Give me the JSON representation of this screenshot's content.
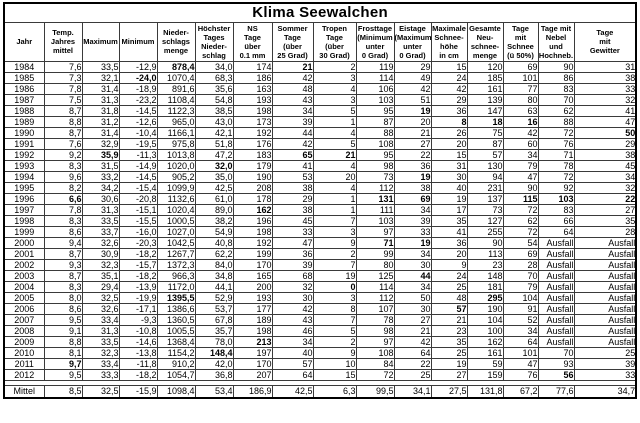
{
  "title": "Klima Seewalchen",
  "table": {
    "columns": [
      {
        "label": "Jahr"
      },
      {
        "label": "Temp.\nJahres\nmittel"
      },
      {
        "label": "Maximum"
      },
      {
        "label": "Minimum"
      },
      {
        "label": "Nieder-\nschlags\nmenge"
      },
      {
        "label": "Höchster\nTages\nNieder-\nschlag"
      },
      {
        "label": "NS\nTage\nüber\n0.1 mm"
      },
      {
        "label": "Sommer\nTage\n(über\n25 Grad)"
      },
      {
        "label": "Tropen\nTage\n(über\n30 Grad)"
      },
      {
        "label": "Frosttage\n(Minimum\nunter\n0 Grad)"
      },
      {
        "label": "Eistage\n(Maximum\nunter\n0 Grad)"
      },
      {
        "label": "Maximale\nSchnee-\nhöhe\nin cm"
      },
      {
        "label": "Gesamte\nNeu-\nschnee-\nmenge"
      },
      {
        "label": "Tage\nmit\nSchnee\n(ü 50%)"
      },
      {
        "label": "Tage mit\nNebel\nund\nHochneb."
      },
      {
        "label": "Tage\nmit\nGewitter"
      }
    ],
    "rows": [
      {
        "cells": [
          "1984",
          "7,6",
          "33,5",
          "-12,9",
          "878,4",
          "34,0",
          "174",
          "21",
          "2",
          "119",
          "29",
          "15",
          "120",
          "69",
          "90",
          "31"
        ],
        "bold": [
          4,
          7
        ]
      },
      {
        "cells": [
          "1985",
          "7,3",
          "32,1",
          "-24,0",
          "1070,4",
          "68,3",
          "186",
          "42",
          "3",
          "114",
          "49",
          "24",
          "185",
          "101",
          "86",
          "38"
        ],
        "bold": [
          3
        ]
      },
      {
        "cells": [
          "1986",
          "7,8",
          "31,4",
          "-18,9",
          "891,6",
          "35,6",
          "163",
          "48",
          "4",
          "106",
          "42",
          "42",
          "161",
          "77",
          "83",
          "33"
        ],
        "bold": []
      },
      {
        "cells": [
          "1987",
          "7,5",
          "31,3",
          "-23,2",
          "1108,4",
          "54,8",
          "193",
          "43",
          "3",
          "103",
          "51",
          "29",
          "139",
          "80",
          "70",
          "32"
        ],
        "bold": []
      },
      {
        "cells": [
          "1988",
          "8,7",
          "31,8",
          "-14,5",
          "1122,3",
          "38,5",
          "198",
          "34",
          "5",
          "95",
          "19",
          "36",
          "147",
          "63",
          "62",
          "41"
        ],
        "bold": [
          10
        ]
      },
      {
        "cells": [
          "1989",
          "8,8",
          "31,2",
          "-12,6",
          "965,0",
          "43,0",
          "173",
          "39",
          "1",
          "87",
          "20",
          "8",
          "18",
          "16",
          "88",
          "47"
        ],
        "bold": [
          11,
          12,
          13
        ]
      },
      {
        "cells": [
          "1990",
          "8,7",
          "31,4",
          "-10,4",
          "1166,1",
          "42,1",
          "192",
          "44",
          "4",
          "88",
          "21",
          "26",
          "75",
          "42",
          "72",
          "50"
        ],
        "bold": [
          15
        ]
      },
      {
        "cells": [
          "1991",
          "7,6",
          "32,9",
          "-19,5",
          "975,8",
          "51,8",
          "176",
          "42",
          "5",
          "108",
          "27",
          "20",
          "87",
          "60",
          "76",
          "29"
        ],
        "bold": []
      },
      {
        "cells": [
          "1992",
          "9,2",
          "35,9",
          "-11,3",
          "1013,8",
          "47,2",
          "183",
          "65",
          "21",
          "95",
          "22",
          "15",
          "57",
          "34",
          "71",
          "38"
        ],
        "bold": [
          2,
          7,
          8
        ]
      },
      {
        "cells": [
          "1993",
          "8,3",
          "31,5",
          "-14,9",
          "1020,0",
          "32,0",
          "179",
          "41",
          "4",
          "98",
          "36",
          "31",
          "130",
          "79",
          "78",
          "45"
        ],
        "bold": [
          5
        ]
      },
      {
        "cells": [
          "1994",
          "9,6",
          "33,2",
          "-14,5",
          "905,2",
          "35,0",
          "190",
          "53",
          "20",
          "73",
          "19",
          "30",
          "94",
          "47",
          "72",
          "34"
        ],
        "bold": [
          10
        ]
      },
      {
        "cells": [
          "1995",
          "8,2",
          "34,2",
          "-15,4",
          "1099,9",
          "42,5",
          "208",
          "38",
          "4",
          "112",
          "38",
          "40",
          "231",
          "90",
          "92",
          "32"
        ],
        "bold": []
      },
      {
        "cells": [
          "1996",
          "6,6",
          "30,6",
          "-20,8",
          "1132,6",
          "61,0",
          "178",
          "29",
          "1",
          "131",
          "69",
          "19",
          "137",
          "115",
          "103",
          "22"
        ],
        "bold": [
          1,
          9,
          10,
          13,
          14,
          15
        ]
      },
      {
        "cells": [
          "1997",
          "7,8",
          "31,3",
          "-15,1",
          "1020,4",
          "89,0",
          "162",
          "38",
          "1",
          "111",
          "34",
          "17",
          "73",
          "72",
          "83",
          "27"
        ],
        "bold": [
          6
        ]
      },
      {
        "cells": [
          "1998",
          "8,3",
          "33,5",
          "-15,5",
          "1000,5",
          "38,2",
          "196",
          "45",
          "7",
          "103",
          "39",
          "35",
          "127",
          "62",
          "66",
          "35"
        ],
        "bold": []
      },
      {
        "cells": [
          "1999",
          "8,6",
          "33,7",
          "-16,0",
          "1027,0",
          "54,9",
          "198",
          "33",
          "3",
          "97",
          "33",
          "41",
          "255",
          "72",
          "64",
          "28"
        ],
        "bold": []
      },
      {
        "cells": [
          "2000",
          "9,4",
          "32,6",
          "-20,3",
          "1042,5",
          "40,8",
          "192",
          "47",
          "9",
          "71",
          "19",
          "36",
          "90",
          "54",
          "Ausfall",
          "Ausfall"
        ],
        "bold": [
          9,
          10
        ]
      },
      {
        "cells": [
          "2001",
          "8,7",
          "30,9",
          "-18,2",
          "1267,7",
          "62,2",
          "199",
          "36",
          "2",
          "99",
          "34",
          "20",
          "113",
          "69",
          "Ausfall",
          "Ausfall"
        ],
        "bold": []
      },
      {
        "cells": [
          "2002",
          "9,3",
          "32,3",
          "-15,7",
          "1372,3",
          "84,0",
          "170",
          "39",
          "7",
          "80",
          "30",
          "9",
          "23",
          "28",
          "Ausfall",
          "Ausfall"
        ],
        "bold": []
      },
      {
        "cells": [
          "2003",
          "8,7",
          "35,1",
          "-18,2",
          "966,3",
          "34,8",
          "165",
          "68",
          "19",
          "125",
          "44",
          "24",
          "148",
          "70",
          "Ausfall",
          "Ausfall"
        ],
        "bold": [
          10
        ]
      },
      {
        "cells": [
          "2004",
          "8,3",
          "29,4",
          "-13,9",
          "1172,0",
          "44,1",
          "200",
          "32",
          "0",
          "114",
          "34",
          "25",
          "181",
          "79",
          "Ausfall",
          "Ausfall"
        ],
        "bold": [
          8
        ]
      },
      {
        "cells": [
          "2005",
          "8,0",
          "32,5",
          "-19,9",
          "1395,5",
          "52,9",
          "193",
          "30",
          "3",
          "112",
          "50",
          "48",
          "295",
          "104",
          "Ausfall",
          "Ausfall"
        ],
        "bold": [
          4,
          12
        ]
      },
      {
        "cells": [
          "2006",
          "8,6",
          "32,6",
          "-17,1",
          "1386,6",
          "53,7",
          "177",
          "42",
          "8",
          "107",
          "30",
          "57",
          "190",
          "91",
          "Ausfall",
          "Ausfall"
        ],
        "bold": [
          11
        ]
      },
      {
        "cells": [
          "2007",
          "9,5",
          "33,4",
          "-9,3",
          "1360,5",
          "67,8",
          "189",
          "43",
          "7",
          "78",
          "27",
          "21",
          "104",
          "52",
          "Ausfall",
          "Ausfall"
        ],
        "bold": []
      },
      {
        "cells": [
          "2008",
          "9,1",
          "31,3",
          "-10,8",
          "1005,5",
          "35,7",
          "198",
          "46",
          "5",
          "98",
          "21",
          "23",
          "100",
          "34",
          "Ausfall",
          "Ausfall"
        ],
        "bold": []
      },
      {
        "cells": [
          "2009",
          "8,8",
          "33,5",
          "-14,6",
          "1368,4",
          "78,0",
          "213",
          "34",
          "2",
          "97",
          "42",
          "35",
          "162",
          "64",
          "Ausfall",
          "Ausfall"
        ],
        "bold": [
          6
        ]
      },
      {
        "cells": [
          "2010",
          "8,1",
          "32,3",
          "-13,8",
          "1154,2",
          "148,4",
          "197",
          "40",
          "9",
          "108",
          "64",
          "25",
          "161",
          "101",
          "70",
          "25"
        ],
        "bold": [
          5
        ]
      },
      {
        "cells": [
          "2011",
          "9,7",
          "33,4",
          "-11,8",
          "910,2",
          "42,0",
          "170",
          "57",
          "10",
          "84",
          "22",
          "19",
          "59",
          "47",
          "93",
          "39"
        ],
        "bold": [
          1
        ]
      },
      {
        "cells": [
          "2012",
          "9,5",
          "33,3",
          "-18,2",
          "1054,7",
          "36,8",
          "207",
          "64",
          "15",
          "72",
          "25",
          "27",
          "159",
          "76",
          "56",
          "33"
        ],
        "bold": [
          14
        ]
      }
    ],
    "footer": {
      "cells": [
        "Mittel",
        "8,5",
        "32,5",
        "-15,9",
        "1098,4",
        "53,4",
        "186,9",
        "42,5",
        "6,3",
        "99,5",
        "34,1",
        "27,5",
        "131,8",
        "67,2",
        "77,6",
        "34,7"
      ],
      "bold": []
    }
  }
}
